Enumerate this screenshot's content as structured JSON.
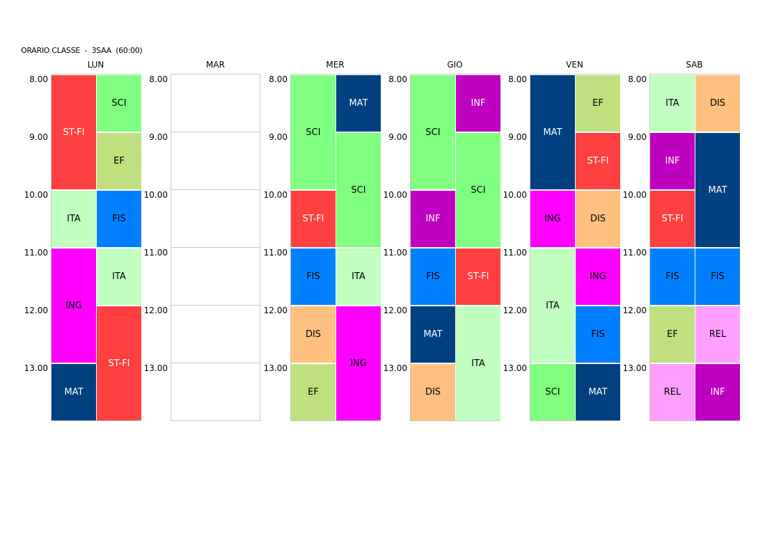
{
  "title": "ORARIO CLASSE  -  3SAA  (60:00)",
  "hours": [
    "8.00",
    "9.00",
    "10.00",
    "11.00",
    "12.00",
    "13.00"
  ],
  "colors": {
    "ST-FI": {
      "bg": "#ff4040",
      "fg": "#ffffff"
    },
    "SCI": {
      "bg": "#80ff80",
      "fg": "#000000"
    },
    "EF": {
      "bg": "#c0e080",
      "fg": "#000000"
    },
    "ITA": {
      "bg": "#c0ffc0",
      "fg": "#000000"
    },
    "FIS": {
      "bg": "#0080ff",
      "fg": "#000000"
    },
    "ING": {
      "bg": "#ff00ff",
      "fg": "#000000"
    },
    "MAT": {
      "bg": "#004080",
      "fg": "#ffffff"
    },
    "INF": {
      "bg": "#c000c0",
      "fg": "#ffffff"
    },
    "DIS": {
      "bg": "#ffc080",
      "fg": "#000000"
    },
    "REL": {
      "bg": "#ffa0ff",
      "fg": "#000000"
    }
  },
  "days": [
    {
      "name": "LUN",
      "lessons": [
        {
          "subject": "ST-FI",
          "col": 0,
          "start": 0,
          "span": 2
        },
        {
          "subject": "SCI",
          "col": 1,
          "start": 0,
          "span": 1
        },
        {
          "subject": "EF",
          "col": 1,
          "start": 1,
          "span": 1
        },
        {
          "subject": "ITA",
          "col": 0,
          "start": 2,
          "span": 1
        },
        {
          "subject": "FIS",
          "col": 1,
          "start": 2,
          "span": 1
        },
        {
          "subject": "ING",
          "col": 0,
          "start": 3,
          "span": 2
        },
        {
          "subject": "ITA",
          "col": 1,
          "start": 3,
          "span": 1
        },
        {
          "subject": "ST-FI",
          "col": 1,
          "start": 4,
          "span": 2
        },
        {
          "subject": "MAT",
          "col": 0,
          "start": 5,
          "span": 1
        }
      ]
    },
    {
      "name": "MAR",
      "lessons": []
    },
    {
      "name": "MER",
      "lessons": [
        {
          "subject": "SCI",
          "col": 0,
          "start": 0,
          "span": 2
        },
        {
          "subject": "MAT",
          "col": 1,
          "start": 0,
          "span": 1
        },
        {
          "subject": "SCI",
          "col": 1,
          "start": 1,
          "span": 2
        },
        {
          "subject": "ST-FI",
          "col": 0,
          "start": 2,
          "span": 1
        },
        {
          "subject": "FIS",
          "col": 0,
          "start": 3,
          "span": 1
        },
        {
          "subject": "ITA",
          "col": 1,
          "start": 3,
          "span": 1
        },
        {
          "subject": "DIS",
          "col": 0,
          "start": 4,
          "span": 1
        },
        {
          "subject": "ING",
          "col": 1,
          "start": 4,
          "span": 2
        },
        {
          "subject": "EF",
          "col": 0,
          "start": 5,
          "span": 1
        }
      ]
    },
    {
      "name": "GIO",
      "lessons": [
        {
          "subject": "SCI",
          "col": 0,
          "start": 0,
          "span": 2
        },
        {
          "subject": "INF",
          "col": 1,
          "start": 0,
          "span": 1
        },
        {
          "subject": "SCI",
          "col": 1,
          "start": 1,
          "span": 2
        },
        {
          "subject": "INF",
          "col": 0,
          "start": 2,
          "span": 1
        },
        {
          "subject": "FIS",
          "col": 0,
          "start": 3,
          "span": 1
        },
        {
          "subject": "ST-FI",
          "col": 1,
          "start": 3,
          "span": 1
        },
        {
          "subject": "MAT",
          "col": 0,
          "start": 4,
          "span": 1
        },
        {
          "subject": "ITA",
          "col": 1,
          "start": 4,
          "span": 2
        },
        {
          "subject": "DIS",
          "col": 0,
          "start": 5,
          "span": 1
        }
      ]
    },
    {
      "name": "VEN",
      "lessons": [
        {
          "subject": "MAT",
          "col": 0,
          "start": 0,
          "span": 2
        },
        {
          "subject": "EF",
          "col": 1,
          "start": 0,
          "span": 1
        },
        {
          "subject": "ST-FI",
          "col": 1,
          "start": 1,
          "span": 1
        },
        {
          "subject": "ING",
          "col": 0,
          "start": 2,
          "span": 1
        },
        {
          "subject": "DIS",
          "col": 1,
          "start": 2,
          "span": 1
        },
        {
          "subject": "ITA",
          "col": 0,
          "start": 3,
          "span": 2
        },
        {
          "subject": "ING",
          "col": 1,
          "start": 3,
          "span": 1
        },
        {
          "subject": "FIS",
          "col": 1,
          "start": 4,
          "span": 1
        },
        {
          "subject": "SCI",
          "col": 0,
          "start": 5,
          "span": 1
        },
        {
          "subject": "MAT",
          "col": 1,
          "start": 5,
          "span": 1
        }
      ]
    },
    {
      "name": "SAB",
      "lessons": [
        {
          "subject": "ITA",
          "col": 0,
          "start": 0,
          "span": 1
        },
        {
          "subject": "DIS",
          "col": 1,
          "start": 0,
          "span": 1
        },
        {
          "subject": "INF",
          "col": 0,
          "start": 1,
          "span": 1
        },
        {
          "subject": "MAT",
          "col": 1,
          "start": 1,
          "span": 2
        },
        {
          "subject": "ST-FI",
          "col": 0,
          "start": 2,
          "span": 1
        },
        {
          "subject": "FIS",
          "col": 0,
          "start": 3,
          "span": 1
        },
        {
          "subject": "FIS",
          "col": 1,
          "start": 3,
          "span": 1
        },
        {
          "subject": "EF",
          "col": 0,
          "start": 4,
          "span": 1
        },
        {
          "subject": "REL",
          "col": 1,
          "start": 4,
          "span": 1
        },
        {
          "subject": "REL",
          "col": 0,
          "start": 5,
          "span": 1
        },
        {
          "subject": "INF",
          "col": 1,
          "start": 5,
          "span": 1
        }
      ]
    }
  ]
}
